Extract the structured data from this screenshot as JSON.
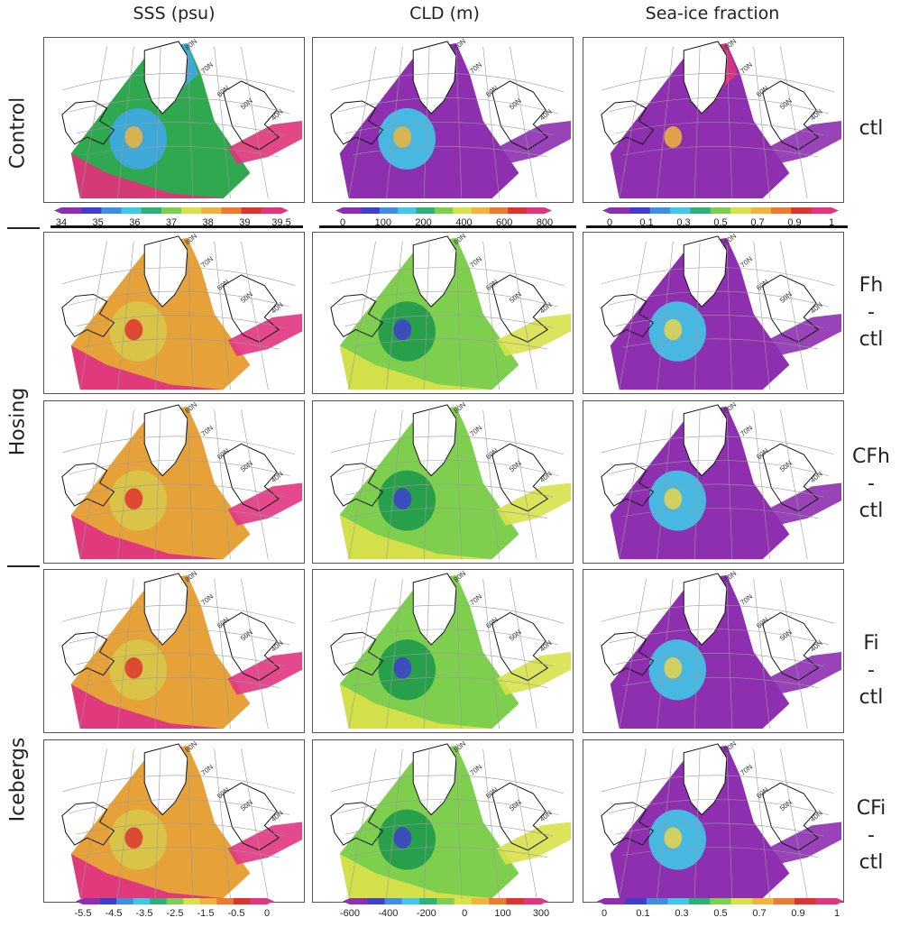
{
  "columns": [
    "SSS (psu)",
    "CLD (m)",
    "Sea-ice fraction"
  ],
  "groups": [
    "Control",
    "Hosing",
    "Icebergs"
  ],
  "rows": [
    {
      "id": "ctl",
      "label_lines": [
        "ctl"
      ]
    },
    {
      "id": "fh",
      "label_lines": [
        "Fh",
        "-",
        "ctl"
      ]
    },
    {
      "id": "cfh",
      "label_lines": [
        "CFh",
        "-",
        "ctl"
      ]
    },
    {
      "id": "fi",
      "label_lines": [
        "Fi",
        "-",
        "ctl"
      ]
    },
    {
      "id": "cfi",
      "label_lines": [
        "CFi",
        "-",
        "ctl"
      ]
    }
  ],
  "map_labels": [
    "80N",
    "70N",
    "60N",
    "50N",
    "40N"
  ],
  "colorbars": {
    "sss_abs": {
      "ticks": [
        "34",
        "35",
        "36",
        "37",
        "38",
        "39",
        "39.5"
      ]
    },
    "cld_abs": {
      "ticks": [
        "0",
        "100",
        "200",
        "400",
        "600",
        "800"
      ]
    },
    "ice_abs": {
      "ticks": [
        "0",
        "0.1",
        "0.3",
        "0.5",
        "0.7",
        "0.9",
        "1"
      ]
    },
    "sss_diff": {
      "ticks": [
        "-5.5",
        "-4.5",
        "-3.5",
        "-2.5",
        "-1.5",
        "-0.5",
        "0"
      ]
    },
    "cld_diff": {
      "ticks": [
        "-600",
        "-400",
        "-200",
        "0",
        "100",
        "300"
      ]
    },
    "ice_diff": {
      "ticks": [
        "0",
        "0.1",
        "0.3",
        "0.5",
        "0.7",
        "0.9",
        "1"
      ]
    }
  },
  "palette": [
    "#8e2fb0",
    "#3f3fcf",
    "#3f8fe0",
    "#3fc8e8",
    "#2fb07a",
    "#7fcf4f",
    "#d8e04a",
    "#f0b43a",
    "#ec7a30",
    "#de3430",
    "#e0357f"
  ]
}
